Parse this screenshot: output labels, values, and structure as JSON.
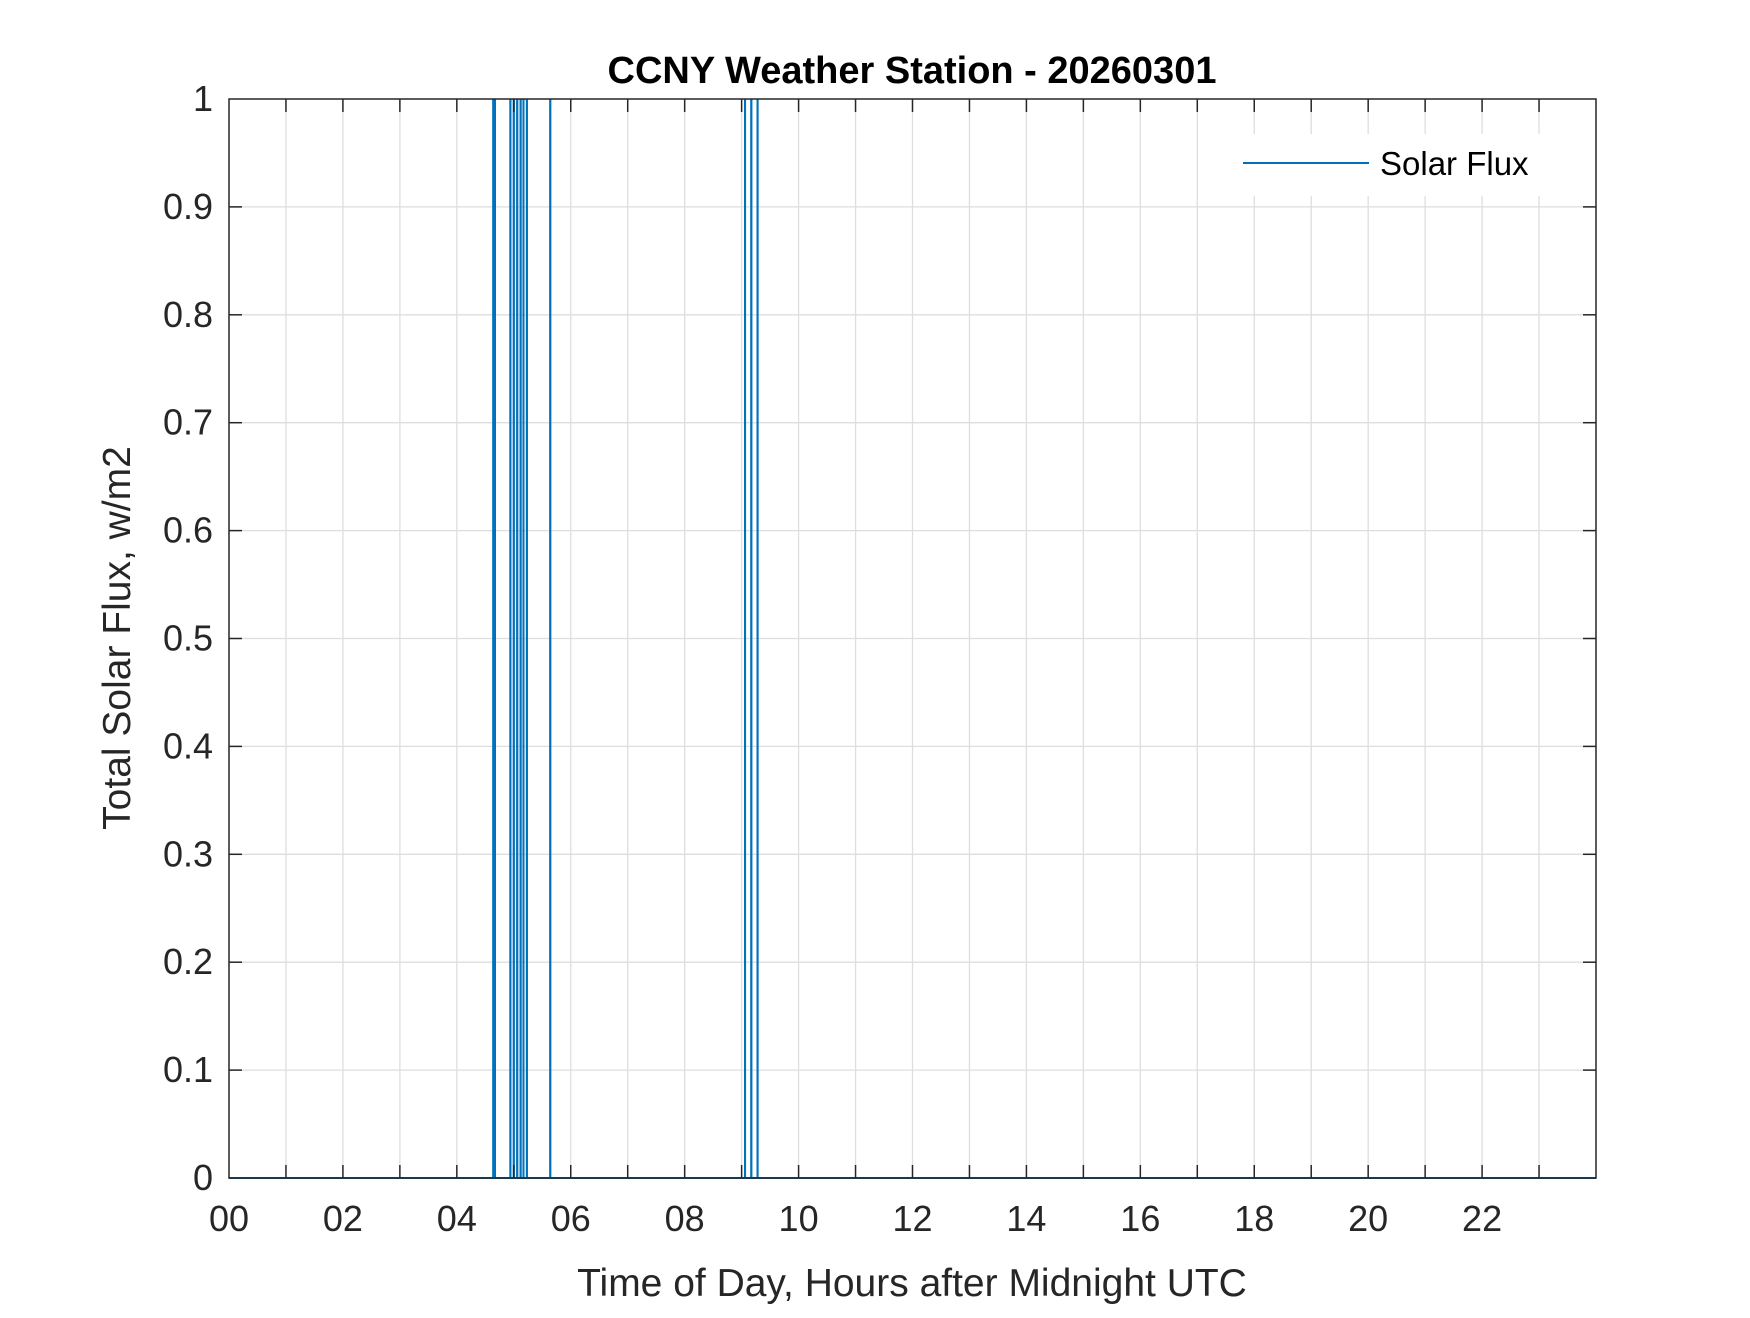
{
  "chart_data": {
    "type": "line",
    "title": "CCNY Weather Station - 20260301",
    "xlabel": "Time of Day, Hours after Midnight UTC",
    "ylabel": "Total Solar Flux, w/m2",
    "xlim": [
      0,
      24
    ],
    "ylim": [
      0,
      1
    ],
    "x_ticks": [
      0,
      2,
      4,
      6,
      8,
      10,
      12,
      14,
      16,
      18,
      20,
      22
    ],
    "x_tick_labels": [
      "00",
      "02",
      "04",
      "06",
      "08",
      "10",
      "12",
      "14",
      "16",
      "18",
      "20",
      "22"
    ],
    "x_minor_grid_step": 1,
    "y_ticks": [
      0,
      0.1,
      0.2,
      0.3,
      0.4,
      0.5,
      0.6,
      0.7,
      0.8,
      0.9,
      1
    ],
    "y_tick_labels": [
      "0",
      "0.1",
      "0.2",
      "0.3",
      "0.4",
      "0.5",
      "0.6",
      "0.7",
      "0.8",
      "0.9",
      "1"
    ],
    "grid": true,
    "legend_position": "top-right",
    "series": [
      {
        "name": "Solar Flux",
        "color": "#0072BD",
        "spikes_at_hours": [
          4.64,
          4.67,
          4.94,
          5.0,
          5.06,
          5.12,
          5.17,
          5.23,
          5.64,
          9.06,
          9.17,
          9.28
        ],
        "spike_value": 1,
        "baseline_value": 0
      }
    ]
  }
}
